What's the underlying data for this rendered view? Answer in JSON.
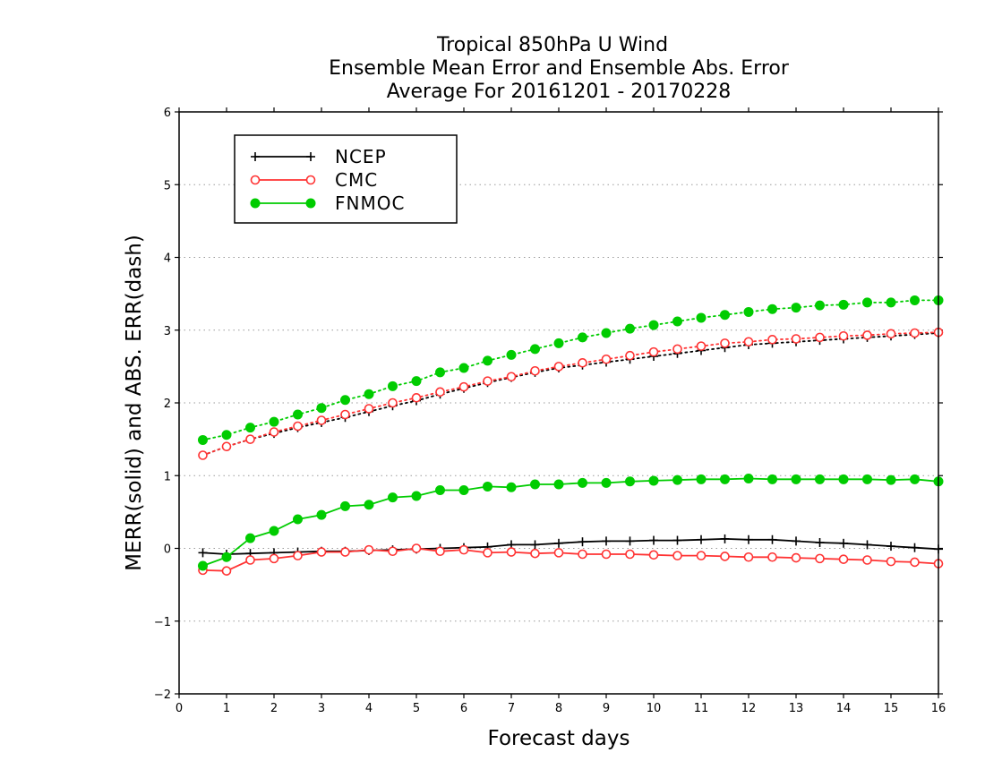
{
  "chart_data": {
    "type": "line",
    "title": [
      "Tropical 850hPa U Wind",
      "Ensemble Mean Error and Ensemble Abs. Error",
      "Average For 20161201 - 20170228"
    ],
    "xlabel": "Forecast days",
    "ylabel": "MERR(solid) and ABS. ERR(dash)",
    "xlim": [
      0,
      16
    ],
    "ylim": [
      -2,
      6
    ],
    "xticks": [
      0,
      1,
      2,
      3,
      4,
      5,
      6,
      7,
      8,
      9,
      10,
      11,
      12,
      13,
      14,
      15,
      16
    ],
    "yticks": [
      -2,
      -1,
      0,
      1,
      2,
      3,
      4,
      5,
      6
    ],
    "grid": "horizontal dotted",
    "legend_position": "top-left",
    "x": [
      0.5,
      1,
      1.5,
      2,
      2.5,
      3,
      3.5,
      4,
      4.5,
      5,
      5.5,
      6,
      6.5,
      7,
      7.5,
      8,
      8.5,
      9,
      9.5,
      10,
      10.5,
      11,
      11.5,
      12,
      12.5,
      13,
      13.5,
      14,
      14.5,
      15,
      15.5,
      16
    ],
    "series": [
      {
        "name": "NCEP",
        "color": "#000000",
        "marker": "plus",
        "merr": [
          -0.06,
          -0.08,
          -0.07,
          -0.06,
          -0.05,
          -0.04,
          -0.04,
          -0.03,
          -0.02,
          -0.01,
          0.0,
          0.01,
          0.02,
          0.05,
          0.05,
          0.07,
          0.09,
          0.1,
          0.1,
          0.11,
          0.11,
          0.12,
          0.13,
          0.12,
          0.12,
          0.1,
          0.08,
          0.07,
          0.05,
          0.03,
          0.01,
          -0.01
        ],
        "abs_err": [
          1.28,
          1.4,
          1.5,
          1.58,
          1.66,
          1.73,
          1.8,
          1.88,
          1.96,
          2.03,
          2.12,
          2.2,
          2.28,
          2.35,
          2.42,
          2.48,
          2.52,
          2.56,
          2.6,
          2.64,
          2.68,
          2.72,
          2.76,
          2.8,
          2.82,
          2.84,
          2.86,
          2.88,
          2.9,
          2.92,
          2.94,
          2.96
        ]
      },
      {
        "name": "CMC",
        "color": "#ff3333",
        "marker": "open-circle",
        "merr": [
          -0.3,
          -0.31,
          -0.16,
          -0.14,
          -0.1,
          -0.05,
          -0.05,
          -0.02,
          -0.04,
          0.0,
          -0.04,
          -0.02,
          -0.06,
          -0.05,
          -0.07,
          -0.06,
          -0.08,
          -0.08,
          -0.08,
          -0.09,
          -0.1,
          -0.1,
          -0.11,
          -0.12,
          -0.12,
          -0.13,
          -0.14,
          -0.15,
          -0.16,
          -0.18,
          -0.19,
          -0.21
        ],
        "abs_err": [
          1.28,
          1.4,
          1.5,
          1.6,
          1.68,
          1.76,
          1.84,
          1.92,
          2.0,
          2.07,
          2.15,
          2.22,
          2.3,
          2.36,
          2.44,
          2.5,
          2.55,
          2.6,
          2.65,
          2.7,
          2.74,
          2.78,
          2.82,
          2.84,
          2.87,
          2.88,
          2.9,
          2.92,
          2.93,
          2.95,
          2.96,
          2.97
        ]
      },
      {
        "name": "FNMOC",
        "color": "#00cc00",
        "marker": "filled-circle",
        "merr": [
          -0.24,
          -0.12,
          0.14,
          0.24,
          0.4,
          0.46,
          0.58,
          0.6,
          0.7,
          0.72,
          0.8,
          0.8,
          0.85,
          0.84,
          0.88,
          0.88,
          0.9,
          0.9,
          0.92,
          0.93,
          0.94,
          0.95,
          0.95,
          0.96,
          0.95,
          0.95,
          0.95,
          0.95,
          0.95,
          0.94,
          0.95,
          0.92
        ],
        "abs_err": [
          1.49,
          1.56,
          1.66,
          1.74,
          1.84,
          1.93,
          2.04,
          2.12,
          2.23,
          2.3,
          2.42,
          2.48,
          2.58,
          2.66,
          2.74,
          2.82,
          2.9,
          2.96,
          3.02,
          3.07,
          3.12,
          3.17,
          3.21,
          3.25,
          3.29,
          3.31,
          3.34,
          3.35,
          3.38,
          3.38,
          3.41,
          3.41
        ]
      }
    ]
  }
}
